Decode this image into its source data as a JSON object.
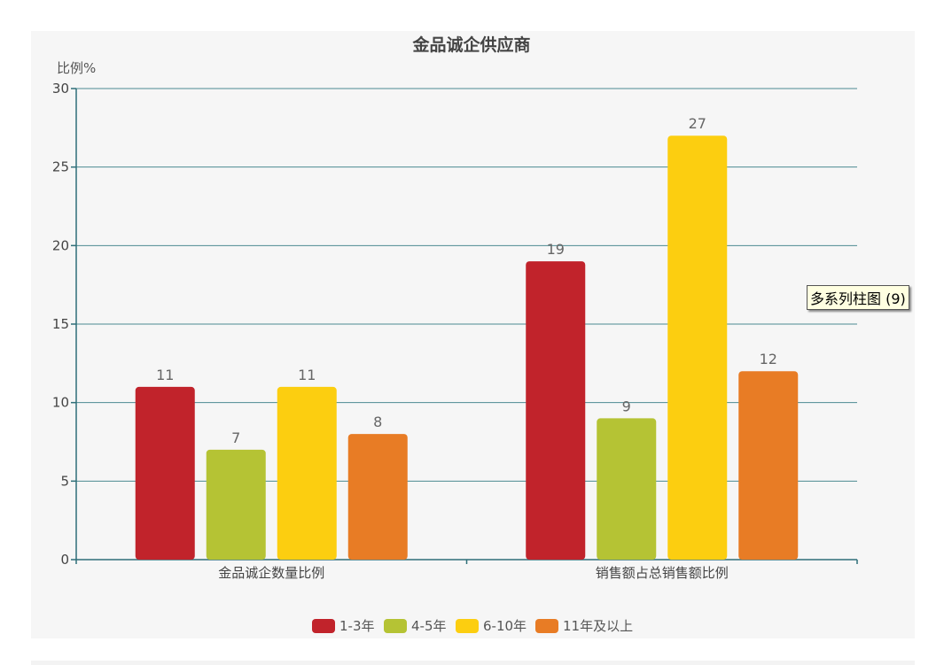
{
  "chart_data": {
    "type": "bar",
    "title": "金品诚企供应商",
    "ylabel": "比例%",
    "xlabel": "",
    "ylim": [
      0,
      30
    ],
    "yticks": [
      0,
      5,
      10,
      15,
      20,
      25,
      30
    ],
    "grid": true,
    "legend_position": "bottom",
    "categories": [
      "金品诚企数量比例",
      "销售额占总销售额比例"
    ],
    "series": [
      {
        "name": "1-3年",
        "color": "#c1232b",
        "values": [
          11,
          19
        ]
      },
      {
        "name": "4-5年",
        "color": "#b5c334",
        "values": [
          7,
          9
        ]
      },
      {
        "name": "6-10年",
        "color": "#fcce10",
        "values": [
          11,
          27
        ]
      },
      {
        "name": "11年及以上",
        "color": "#e87c25",
        "values": [
          8,
          12
        ]
      }
    ]
  },
  "tooltip": {
    "text": "多系列柱图 (9)"
  }
}
